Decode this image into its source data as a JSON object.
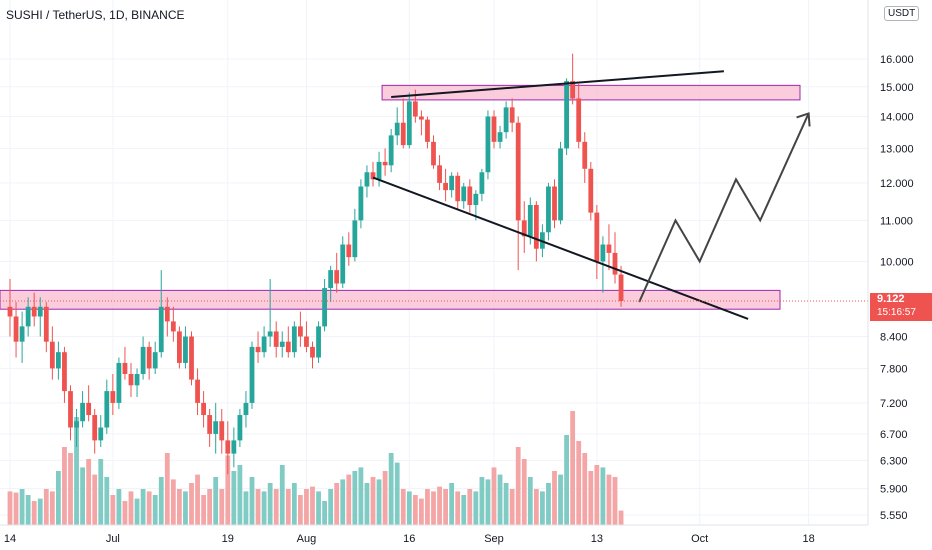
{
  "header": {
    "title": "SUSHI / TetherUS, 1D, BINANCE",
    "currency": "USDT"
  },
  "last_price": {
    "value": "9.122",
    "countdown": "15:16:57"
  },
  "colors": {
    "up": "#26a69a",
    "down": "#ef5350",
    "vol_up": "#80cbc4",
    "vol_down": "#f4a6a6",
    "zone_fill": "#f8bbd0",
    "zone_stroke": "#9c27b0",
    "line": "#131722",
    "projection": "#444444",
    "grid": "#f0f3fa",
    "text": "#131722"
  },
  "chart_data": {
    "type": "candlestick",
    "title": "SUSHI / TetherUS, 1D, BINANCE",
    "y_scale": "log",
    "y_ticks": [
      "16.000",
      "15.000",
      "14.000",
      "13.000",
      "12.000",
      "11.000",
      "10.000",
      "8.400",
      "7.800",
      "7.200",
      "6.700",
      "6.300",
      "5.900",
      "5.550"
    ],
    "y_tick_values": [
      16.0,
      15.0,
      14.0,
      13.0,
      12.0,
      11.0,
      10.0,
      8.4,
      7.8,
      7.2,
      6.7,
      6.3,
      5.9,
      5.55
    ],
    "x_ticks": [
      "14",
      "Jul",
      "19",
      "Aug",
      "16",
      "Sep",
      "13",
      "Oct",
      "18"
    ],
    "x_tick_days": [
      0,
      17,
      36,
      49,
      66,
      80,
      97,
      114,
      132
    ],
    "first_day": "Jun 14",
    "candles": [
      [
        9.0,
        9.6,
        8.4,
        8.8
      ],
      [
        8.8,
        9.1,
        8.0,
        8.3
      ],
      [
        8.3,
        8.9,
        7.9,
        8.6
      ],
      [
        8.6,
        9.2,
        8.4,
        9.0
      ],
      [
        9.0,
        9.3,
        8.6,
        8.8
      ],
      [
        8.8,
        9.2,
        8.4,
        9.0
      ],
      [
        9.0,
        9.1,
        8.1,
        8.3
      ],
      [
        8.3,
        8.6,
        7.6,
        7.8
      ],
      [
        7.8,
        8.3,
        7.6,
        8.1
      ],
      [
        8.1,
        8.2,
        7.2,
        7.4
      ],
      [
        7.4,
        7.5,
        6.6,
        6.8
      ],
      [
        6.8,
        7.1,
        6.5,
        6.9
      ],
      [
        6.9,
        7.4,
        6.8,
        7.2
      ],
      [
        7.2,
        7.5,
        6.9,
        7.0
      ],
      [
        7.0,
        7.1,
        6.4,
        6.6
      ],
      [
        6.6,
        7.0,
        6.5,
        6.8
      ],
      [
        6.8,
        7.6,
        6.7,
        7.4
      ],
      [
        7.4,
        7.7,
        7.0,
        7.2
      ],
      [
        7.2,
        8.0,
        7.1,
        7.9
      ],
      [
        7.9,
        8.2,
        7.6,
        7.7
      ],
      [
        7.7,
        7.9,
        7.3,
        7.5
      ],
      [
        7.5,
        7.8,
        7.3,
        7.7
      ],
      [
        7.7,
        8.4,
        7.6,
        8.2
      ],
      [
        8.2,
        8.3,
        7.6,
        7.8
      ],
      [
        7.8,
        8.3,
        7.7,
        8.1
      ],
      [
        8.1,
        9.8,
        8.0,
        9.0
      ],
      [
        9.0,
        9.2,
        8.4,
        8.7
      ],
      [
        8.7,
        9.0,
        8.3,
        8.5
      ],
      [
        8.5,
        8.6,
        7.8,
        7.9
      ],
      [
        7.9,
        8.6,
        7.8,
        8.4
      ],
      [
        8.4,
        8.5,
        7.5,
        7.6
      ],
      [
        7.6,
        7.8,
        7.0,
        7.2
      ],
      [
        7.2,
        7.4,
        6.8,
        7.0
      ],
      [
        7.0,
        7.1,
        6.5,
        6.7
      ],
      [
        6.7,
        7.2,
        6.4,
        6.9
      ],
      [
        6.9,
        7.1,
        6.4,
        6.6
      ],
      [
        6.6,
        6.9,
        6.1,
        6.4
      ],
      [
        6.4,
        6.8,
        6.2,
        6.6
      ],
      [
        6.6,
        7.1,
        6.5,
        7.0
      ],
      [
        7.0,
        7.4,
        6.8,
        7.2
      ],
      [
        7.2,
        8.3,
        7.1,
        8.2
      ],
      [
        8.2,
        8.5,
        7.9,
        8.1
      ],
      [
        8.1,
        8.6,
        8.0,
        8.4
      ],
      [
        8.4,
        9.6,
        8.2,
        8.5
      ],
      [
        8.5,
        8.7,
        8.0,
        8.2
      ],
      [
        8.2,
        8.5,
        8.0,
        8.3
      ],
      [
        8.3,
        8.6,
        8.0,
        8.1
      ],
      [
        8.1,
        8.7,
        8.0,
        8.6
      ],
      [
        8.6,
        8.9,
        8.2,
        8.4
      ],
      [
        8.4,
        8.7,
        8.1,
        8.2
      ],
      [
        8.2,
        8.3,
        7.8,
        8.0
      ],
      [
        8.0,
        8.7,
        7.9,
        8.6
      ],
      [
        8.6,
        9.6,
        8.5,
        9.4
      ],
      [
        9.4,
        9.9,
        9.1,
        9.8
      ],
      [
        9.8,
        10.2,
        9.3,
        9.5
      ],
      [
        9.5,
        10.6,
        9.4,
        10.4
      ],
      [
        10.4,
        10.7,
        9.9,
        10.1
      ],
      [
        10.1,
        11.3,
        10.0,
        11.0
      ],
      [
        11.0,
        12.1,
        10.8,
        11.9
      ],
      [
        11.9,
        12.5,
        11.6,
        12.3
      ],
      [
        12.3,
        12.6,
        11.9,
        12.1
      ],
      [
        12.1,
        12.9,
        11.9,
        12.6
      ],
      [
        12.6,
        13.0,
        12.2,
        12.5
      ],
      [
        12.5,
        13.6,
        12.3,
        13.4
      ],
      [
        13.4,
        14.3,
        13.1,
        13.8
      ],
      [
        13.8,
        14.6,
        13.0,
        13.1
      ],
      [
        13.1,
        14.8,
        13.0,
        14.5
      ],
      [
        14.5,
        14.9,
        13.8,
        14.0
      ],
      [
        14.0,
        14.2,
        13.4,
        13.9
      ],
      [
        13.9,
        14.0,
        13.0,
        13.2
      ],
      [
        13.2,
        13.4,
        12.4,
        12.5
      ],
      [
        12.5,
        12.8,
        11.8,
        12.0
      ],
      [
        12.0,
        12.4,
        11.5,
        11.8
      ],
      [
        11.8,
        12.3,
        11.6,
        12.2
      ],
      [
        12.2,
        12.3,
        11.3,
        11.5
      ],
      [
        11.5,
        12.0,
        11.3,
        11.9
      ],
      [
        11.9,
        12.1,
        11.2,
        11.4
      ],
      [
        11.4,
        11.8,
        11.0,
        11.7
      ],
      [
        11.7,
        12.4,
        11.5,
        12.3
      ],
      [
        12.3,
        14.2,
        12.1,
        14.0
      ],
      [
        14.0,
        14.2,
        13.0,
        13.2
      ],
      [
        13.2,
        13.7,
        13.0,
        13.5
      ],
      [
        13.5,
        14.5,
        13.3,
        14.3
      ],
      [
        14.3,
        14.6,
        13.5,
        13.8
      ],
      [
        13.8,
        14.0,
        9.8,
        11.0
      ],
      [
        11.0,
        11.5,
        10.2,
        10.6
      ],
      [
        10.6,
        11.6,
        10.4,
        11.4
      ],
      [
        11.4,
        11.5,
        10.0,
        10.3
      ],
      [
        10.3,
        10.9,
        10.1,
        10.7
      ],
      [
        10.7,
        12.0,
        10.5,
        11.9
      ],
      [
        11.9,
        12.1,
        10.8,
        11.0
      ],
      [
        11.0,
        13.2,
        10.9,
        13.0
      ],
      [
        13.0,
        15.3,
        12.8,
        15.2
      ],
      [
        15.2,
        16.2,
        14.4,
        14.6
      ],
      [
        14.6,
        15.1,
        13.0,
        13.2
      ],
      [
        13.2,
        13.5,
        12.0,
        12.4
      ],
      [
        12.4,
        12.6,
        11.0,
        11.2
      ],
      [
        11.2,
        11.4,
        9.6,
        10.0
      ],
      [
        10.0,
        10.6,
        9.3,
        10.4
      ],
      [
        10.4,
        10.9,
        9.8,
        10.2
      ],
      [
        10.2,
        10.7,
        9.5,
        9.7
      ],
      [
        9.7,
        9.9,
        9.0,
        9.122
      ]
    ],
    "volume": [
      28,
      27,
      30,
      25,
      20,
      22,
      30,
      28,
      45,
      65,
      60,
      90,
      48,
      55,
      42,
      55,
      40,
      25,
      30,
      20,
      28,
      22,
      30,
      28,
      25,
      40,
      60,
      38,
      30,
      28,
      35,
      42,
      25,
      30,
      40,
      30,
      58,
      45,
      50,
      28,
      40,
      30,
      28,
      35,
      30,
      50,
      30,
      35,
      25,
      30,
      32,
      28,
      20,
      30,
      35,
      38,
      42,
      45,
      48,
      35,
      40,
      38,
      45,
      60,
      52,
      30,
      28,
      25,
      22,
      30,
      28,
      32,
      30,
      35,
      28,
      25,
      30,
      28,
      40,
      38,
      48,
      42,
      35,
      30,
      65,
      55,
      40,
      30,
      28,
      35,
      45,
      42,
      75,
      95,
      70,
      60,
      45,
      50,
      48,
      42,
      40,
      12
    ],
    "support_zone": [
      8.95,
      9.35
    ],
    "resistance_zone": [
      14.55,
      15.05
    ],
    "upper_trendline": {
      "from": [
        63,
        14.65
      ],
      "to": [
        118,
        15.55
      ]
    },
    "lower_trendline": {
      "from": [
        60,
        12.15
      ],
      "to": [
        122,
        8.75
      ]
    },
    "projection": [
      [
        104,
        9.1
      ],
      [
        110,
        11.0
      ],
      [
        114,
        10.0
      ],
      [
        120,
        12.1
      ],
      [
        124,
        11.0
      ],
      [
        132,
        14.1
      ]
    ]
  }
}
